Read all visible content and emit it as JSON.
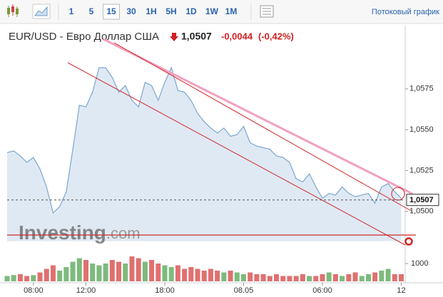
{
  "toolbar": {
    "intervals": [
      "1",
      "5",
      "15",
      "30",
      "1H",
      "5H",
      "1D",
      "1W",
      "1M"
    ],
    "selected": 2,
    "streaming": "Потоковый график"
  },
  "watermark": [
    "Investing",
    ".com"
  ],
  "chart_data": {
    "type": "line",
    "title": "EUR/USD - Евро Доллар США",
    "last_price": {
      "value": 1.0507,
      "label": "1,0507"
    },
    "change": {
      "value": -0.0044,
      "label": "-0,0044"
    },
    "change_percent": {
      "value": -0.42,
      "label": "(-0,42%)"
    },
    "x": [
      -2,
      -1.5,
      -1,
      -0.5,
      0,
      0.5,
      1,
      1.5,
      2,
      2.5,
      3,
      3.5,
      4,
      4.5,
      5,
      5.5,
      6,
      6.5,
      7,
      7.5,
      8,
      8.5,
      9,
      9.5,
      10,
      10.5,
      11,
      11.5,
      12,
      12.5,
      13,
      13.5,
      14,
      14.5,
      15,
      15.5,
      16,
      16.5,
      17,
      17.5,
      18,
      18.5,
      19,
      19.5,
      20,
      20.5,
      21,
      21.5,
      22,
      22.5,
      23,
      23.5,
      24,
      24.5,
      25,
      25.5,
      26,
      26.5,
      27,
      27.5,
      28
    ],
    "xlim": [
      -2,
      28.3
    ],
    "xticks": [
      {
        "value": 0,
        "label": "08:00"
      },
      {
        "value": 4,
        "label": "12:00"
      },
      {
        "value": 10,
        "label": "18:00"
      },
      {
        "value": 16,
        "label": "08.05"
      },
      {
        "value": 22,
        "label": "06:00"
      },
      {
        "value": 28,
        "label": "12"
      }
    ],
    "series": [
      {
        "color": "#7ba6cf",
        "fill": "#dfe9f4",
        "values": [
          1.0536,
          1.0537,
          1.0534,
          1.053,
          1.0533,
          1.0526,
          1.0515,
          1.0499,
          1.0503,
          1.0512,
          1.0538,
          1.0565,
          1.0564,
          1.0573,
          1.0588,
          1.0588,
          1.0582,
          1.0573,
          1.0577,
          1.0568,
          1.0564,
          1.0579,
          1.0577,
          1.0568,
          1.0579,
          1.0588,
          1.0574,
          1.0573,
          1.0568,
          1.056,
          1.0555,
          1.0551,
          1.0548,
          1.0551,
          1.0546,
          1.0547,
          1.0552,
          1.0542,
          1.054,
          1.0539,
          1.0538,
          1.0534,
          1.0533,
          1.053,
          1.052,
          1.0518,
          1.0523,
          1.0515,
          1.0508,
          1.0511,
          1.051,
          1.0515,
          1.0511,
          1.0509,
          1.051,
          1.0511,
          1.0505,
          1.0515,
          1.0517,
          1.0512,
          1.0508
        ]
      }
    ],
    "ylim": [
      1.0482,
      1.0612
    ],
    "yticks": [
      {
        "value": 1.05,
        "label": "1,0500"
      },
      {
        "value": 1.0525,
        "label": "1,0525"
      },
      {
        "value": 1.055,
        "label": "1,0550"
      },
      {
        "value": 1.0575,
        "label": "1,0575"
      }
    ],
    "volume": {
      "values": [
        300,
        350,
        400,
        300,
        350,
        500,
        700,
        900,
        600,
        800,
        1100,
        1300,
        1200,
        1000,
        900,
        1000,
        1200,
        1100,
        1000,
        1400,
        1300,
        1100,
        1200,
        1000,
        900,
        800,
        900,
        700,
        800,
        700,
        600,
        700,
        600,
        500,
        600,
        500,
        400,
        500,
        400,
        400,
        300,
        400,
        300,
        300,
        300,
        400,
        300,
        300,
        400,
        500,
        400,
        300,
        400,
        500,
        300,
        400,
        500,
        600,
        700,
        400,
        400
      ],
      "ylim": [
        0,
        1720
      ],
      "yticks": [
        1000
      ],
      "up_color": "#7dba7d",
      "down_color": "#e07070"
    }
  }
}
